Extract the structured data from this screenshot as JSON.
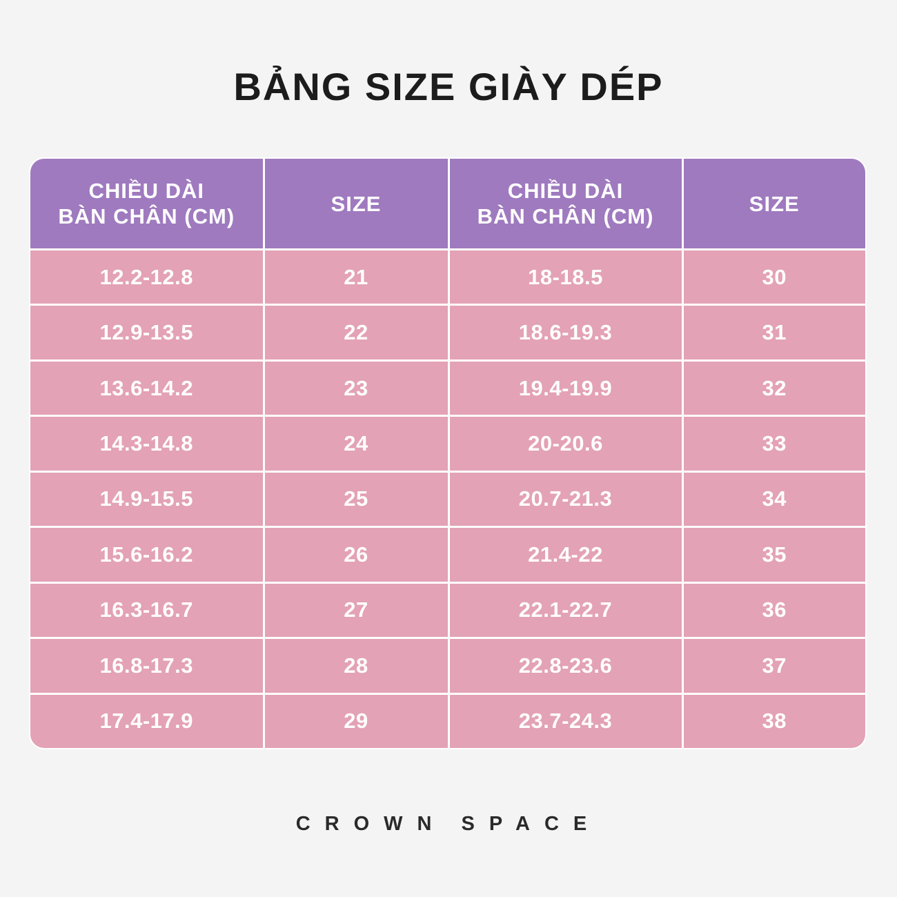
{
  "title": "BẢNG SIZE GIÀY DÉP",
  "table": {
    "headers": [
      {
        "line1": "CHIỀU DÀI",
        "line2": "BÀN CHÂN (CM)"
      },
      {
        "line1": "SIZE",
        "line2": ""
      },
      {
        "line1": "CHIỀU DÀI",
        "line2": "BÀN CHÂN (CM)"
      },
      {
        "line1": "SIZE",
        "line2": ""
      }
    ],
    "rows": [
      [
        "12.2-12.8",
        "21",
        "18-18.5",
        "30"
      ],
      [
        "12.9-13.5",
        "22",
        "18.6-19.3",
        "31"
      ],
      [
        "13.6-14.2",
        "23",
        "19.4-19.9",
        "32"
      ],
      [
        "14.3-14.8",
        "24",
        "20-20.6",
        "33"
      ],
      [
        "14.9-15.5",
        "25",
        "20.7-21.3",
        "34"
      ],
      [
        "15.6-16.2",
        "26",
        "21.4-22",
        "35"
      ],
      [
        "16.3-16.7",
        "27",
        "22.1-22.7",
        "36"
      ],
      [
        "16.8-17.3",
        "28",
        "22.8-23.6",
        "37"
      ],
      [
        "17.4-17.9",
        "29",
        "23.7-24.3",
        "38"
      ]
    ]
  },
  "brand": {
    "word1": "CROWN",
    "word2": "SPACE"
  },
  "colors": {
    "header_bg": "#9f7abf",
    "cell_bg": "#e3a2b6",
    "page_bg": "#f4f4f4",
    "title_text": "#1c1c1c"
  }
}
